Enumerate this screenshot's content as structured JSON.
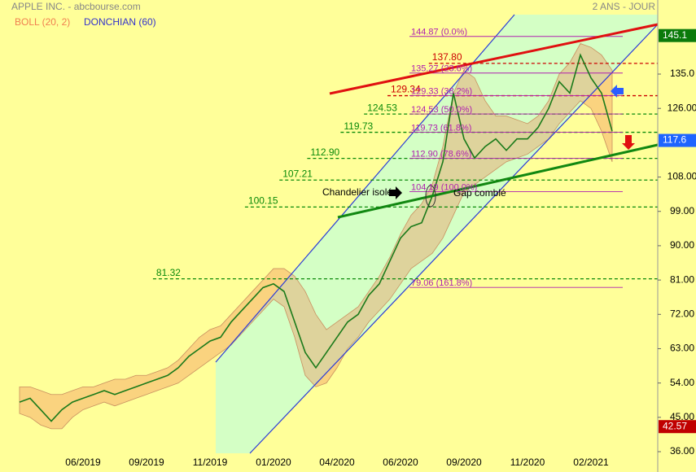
{
  "chart_data": {
    "type": "line",
    "title": "APPLE INC. - abcbourse.com",
    "subtitle": "2 ANS - JOUR",
    "indicator": "DONCHIAN (60)",
    "categories": [
      null,
      null,
      null,
      null,
      null,
      null,
      "06/2019",
      null,
      null,
      null,
      null,
      null,
      "09/2019",
      null,
      null,
      null,
      null,
      null,
      "11/2019",
      null,
      null,
      null,
      null,
      null,
      "01/2020",
      null,
      null,
      null,
      null,
      null,
      "04/2020",
      null,
      null,
      null,
      null,
      null,
      "06/2020",
      null,
      null,
      null,
      null,
      null,
      "09/2020",
      null,
      null,
      null,
      null,
      null,
      "11/2020",
      null,
      null,
      null,
      null,
      null,
      "02/2021",
      null,
      null
    ],
    "values": [
      49,
      50,
      47,
      44,
      47,
      49,
      50,
      51,
      52,
      51,
      52,
      53,
      54,
      55,
      56,
      58,
      61,
      63,
      65,
      66,
      70,
      73,
      76,
      79,
      80,
      78,
      70,
      62,
      58,
      62,
      66,
      70,
      72,
      77,
      80,
      86,
      92,
      95,
      96,
      103,
      112,
      130,
      118,
      113,
      116,
      118,
      115,
      118,
      118,
      121,
      126,
      133,
      130,
      140,
      134,
      130,
      120
    ],
    "color": "#1a7a1a",
    "bands": {
      "name": "BOLL (20, 2)",
      "color": "#f08050",
      "upper": [
        53,
        53,
        52,
        51,
        51,
        52,
        53,
        53,
        54,
        55,
        55,
        56,
        56,
        57,
        58,
        60,
        63,
        66,
        68,
        69,
        72,
        75,
        78,
        81,
        84,
        84,
        82,
        78,
        72,
        68,
        70,
        72,
        74,
        78,
        82,
        87,
        93,
        98,
        101,
        106,
        116,
        130,
        136,
        134,
        128,
        124,
        124,
        123,
        122,
        124,
        128,
        135,
        138,
        143,
        142,
        140,
        136
      ],
      "lower": [
        46,
        45,
        43,
        42,
        42,
        45,
        47,
        48,
        49,
        48,
        49,
        50,
        51,
        52,
        53,
        54,
        56,
        58,
        60,
        62,
        64,
        67,
        70,
        73,
        76,
        74,
        66,
        56,
        53,
        54,
        58,
        63,
        66,
        70,
        73,
        76,
        80,
        84,
        86,
        88,
        92,
        98,
        104,
        106,
        108,
        110,
        112,
        113,
        114,
        116,
        118,
        122,
        125,
        128,
        126,
        120,
        112
      ]
    },
    "ylim": [
      30.67,
      154.42
    ],
    "yticks": [
      {
        "value": 36,
        "label": "36.00"
      },
      {
        "value": 45,
        "label": "45.00"
      },
      {
        "value": 54,
        "label": "54.00"
      },
      {
        "value": 63,
        "label": "63.00"
      },
      {
        "value": 72,
        "label": "72.00"
      },
      {
        "value": 81,
        "label": "81.00"
      },
      {
        "value": 90,
        "label": "90.00"
      },
      {
        "value": 99,
        "label": "99.00"
      },
      {
        "value": 108,
        "label": "108.00"
      },
      {
        "value": 126,
        "label": "126.00"
      },
      {
        "value": 135,
        "label": "135.0"
      }
    ],
    "badges": [
      {
        "value": 145.1,
        "color": "#0b7a0b"
      },
      {
        "value": 117.6,
        "color": "#1e64ff"
      },
      {
        "value": 42.57,
        "color": "#c00000"
      }
    ],
    "levels": [
      {
        "value": 137.8,
        "label": "137.80",
        "color": "#cc0000"
      },
      {
        "value": 129.34,
        "label": "129.34",
        "color": "#cc0000"
      },
      {
        "value": 124.53,
        "label": "124.53",
        "color": "#0a8a0a"
      },
      {
        "value": 119.73,
        "label": "119.73",
        "color": "#0a8a0a"
      },
      {
        "value": 112.9,
        "label": "112.90",
        "color": "#0a8a0a"
      },
      {
        "value": 107.21,
        "label": "107.21",
        "color": "#0a8a0a"
      },
      {
        "value": 100.15,
        "label": "100.15",
        "color": "#0a8a0a"
      },
      {
        "value": 81.32,
        "label": "81.32",
        "color": "#0a8a0a"
      }
    ],
    "fibonacci": [
      {
        "value": 144.87,
        "label": "144.87 (0.0%)"
      },
      {
        "value": 135.27,
        "label": "135.27 (23.6%)"
      },
      {
        "value": 129.33,
        "label": "129.33 (38.2%)"
      },
      {
        "value": 124.53,
        "label": "124.53 (50.0%)"
      },
      {
        "value": 119.73,
        "label": "119.73 (61.8%)"
      },
      {
        "value": 112.9,
        "label": "112.90 (78.6%)"
      },
      {
        "value": 104.19,
        "label": "104.19 (100.0%)"
      },
      {
        "value": 79.06,
        "label": "79.06 (161.8%)"
      }
    ],
    "annotations": [
      "Chandelier isolé",
      "Gap comblé"
    ]
  }
}
